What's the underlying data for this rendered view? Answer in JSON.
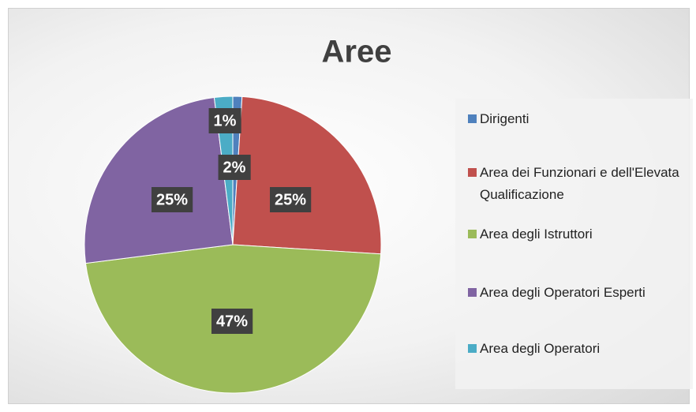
{
  "chart_data": {
    "type": "pie",
    "title": "Aree",
    "categories": [
      "Dirigenti",
      "Area dei Funzionari e dell'Elevata Qualificazione",
      "Area degli Istruttori",
      "Area degli Operatori Esperti",
      "Area degli Operatori"
    ],
    "values": [
      1,
      25,
      47,
      25,
      2
    ],
    "value_labels": [
      "1%",
      "25%",
      "47%",
      "25%",
      "2%"
    ],
    "colors": [
      "#4f81bd",
      "#c0504d",
      "#9bbb59",
      "#8064a2",
      "#4bacc6"
    ],
    "legend": "right"
  }
}
